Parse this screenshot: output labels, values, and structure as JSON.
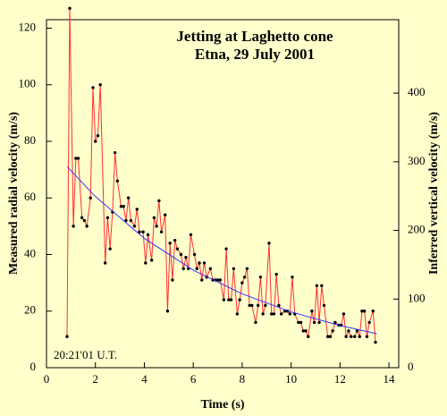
{
  "chart_data": {
    "type": "line",
    "title": "Jetting at Laghetto cone",
    "subtitle": "Etna, 29 July 2001",
    "annotation": "20:21'01 U.T.",
    "x_label": "Time (s)",
    "y_label": "Measured radial velocity (m/s)",
    "y2_label": "Inferred vertical velocity (m/s)",
    "x": [
      0.84,
      0.95,
      1.1,
      1.2,
      1.3,
      1.45,
      1.55,
      1.65,
      1.8,
      1.9,
      2.0,
      2.1,
      2.2,
      2.4,
      2.5,
      2.6,
      2.7,
      2.8,
      2.9,
      3.05,
      3.15,
      3.25,
      3.35,
      3.45,
      3.6,
      3.7,
      3.8,
      3.95,
      4.05,
      4.15,
      4.3,
      4.4,
      4.5,
      4.6,
      4.7,
      4.85,
      4.95,
      5.05,
      5.15,
      5.25,
      5.35,
      5.5,
      5.6,
      5.7,
      5.8,
      5.9,
      6.05,
      6.15,
      6.25,
      6.35,
      6.45,
      6.55,
      6.7,
      6.8,
      6.9,
      7.0,
      7.1,
      7.25,
      7.35,
      7.45,
      7.55,
      7.65,
      7.8,
      7.9,
      8.0,
      8.1,
      8.2,
      8.3,
      8.4,
      8.55,
      8.65,
      8.75,
      8.85,
      8.95,
      9.1,
      9.2,
      9.3,
      9.4,
      9.5,
      9.6,
      9.75,
      9.85,
      9.95,
      10.05,
      10.15,
      10.3,
      10.4,
      10.5,
      10.6,
      10.7,
      10.85,
      10.95,
      11.05,
      11.15,
      11.25,
      11.35,
      11.5,
      11.6,
      11.7,
      11.8,
      11.95,
      12.05,
      12.15,
      12.25,
      12.35,
      12.45,
      12.6,
      12.7,
      12.8,
      12.9,
      13.0,
      13.1,
      13.2,
      13.35,
      13.45
    ],
    "series": [
      {
        "color": "#ff3030",
        "marker_color": "#000000",
        "values": [
          11,
          127,
          50,
          74,
          74,
          53,
          52,
          50,
          60,
          99,
          80,
          82,
          100,
          37,
          53,
          42,
          55,
          76,
          66,
          57,
          57,
          52,
          60,
          52,
          50,
          56,
          48,
          48,
          37,
          47,
          38,
          53,
          50,
          59,
          48,
          54,
          20,
          44,
          31,
          45,
          42,
          40,
          35,
          39,
          35,
          47,
          40,
          35,
          37,
          31,
          37,
          32,
          35,
          31,
          31,
          31,
          31,
          24,
          42,
          24,
          24,
          35,
          19,
          24,
          30,
          32,
          35,
          22,
          22,
          16,
          22,
          32,
          19,
          22,
          44,
          19,
          19,
          33,
          22,
          19,
          20,
          20,
          19,
          32,
          19,
          16,
          16,
          13,
          13,
          11,
          20,
          16,
          29,
          16,
          29,
          22,
          11,
          11,
          13,
          16,
          15,
          15,
          19,
          11,
          13,
          11,
          11,
          13,
          11,
          20,
          20,
          11,
          16,
          20,
          9
        ]
      }
    ],
    "fit": {
      "color": "#3030ff",
      "x": [
        0.85,
        2,
        4,
        6,
        8,
        10,
        12,
        13.5
      ],
      "values": [
        71,
        60.5,
        45.7,
        34.5,
        26.1,
        19.7,
        14.9,
        12
      ]
    },
    "xlim": [
      0,
      14.4
    ],
    "xticks": [
      0,
      2,
      4,
      6,
      8,
      10,
      12,
      14
    ],
    "ylim": [
      0,
      123
    ],
    "yticks": [
      0,
      20,
      40,
      60,
      80,
      100,
      120
    ],
    "y2lim": [
      0,
      507
    ],
    "y2ticks": [
      0,
      100,
      200,
      300,
      400
    ]
  }
}
